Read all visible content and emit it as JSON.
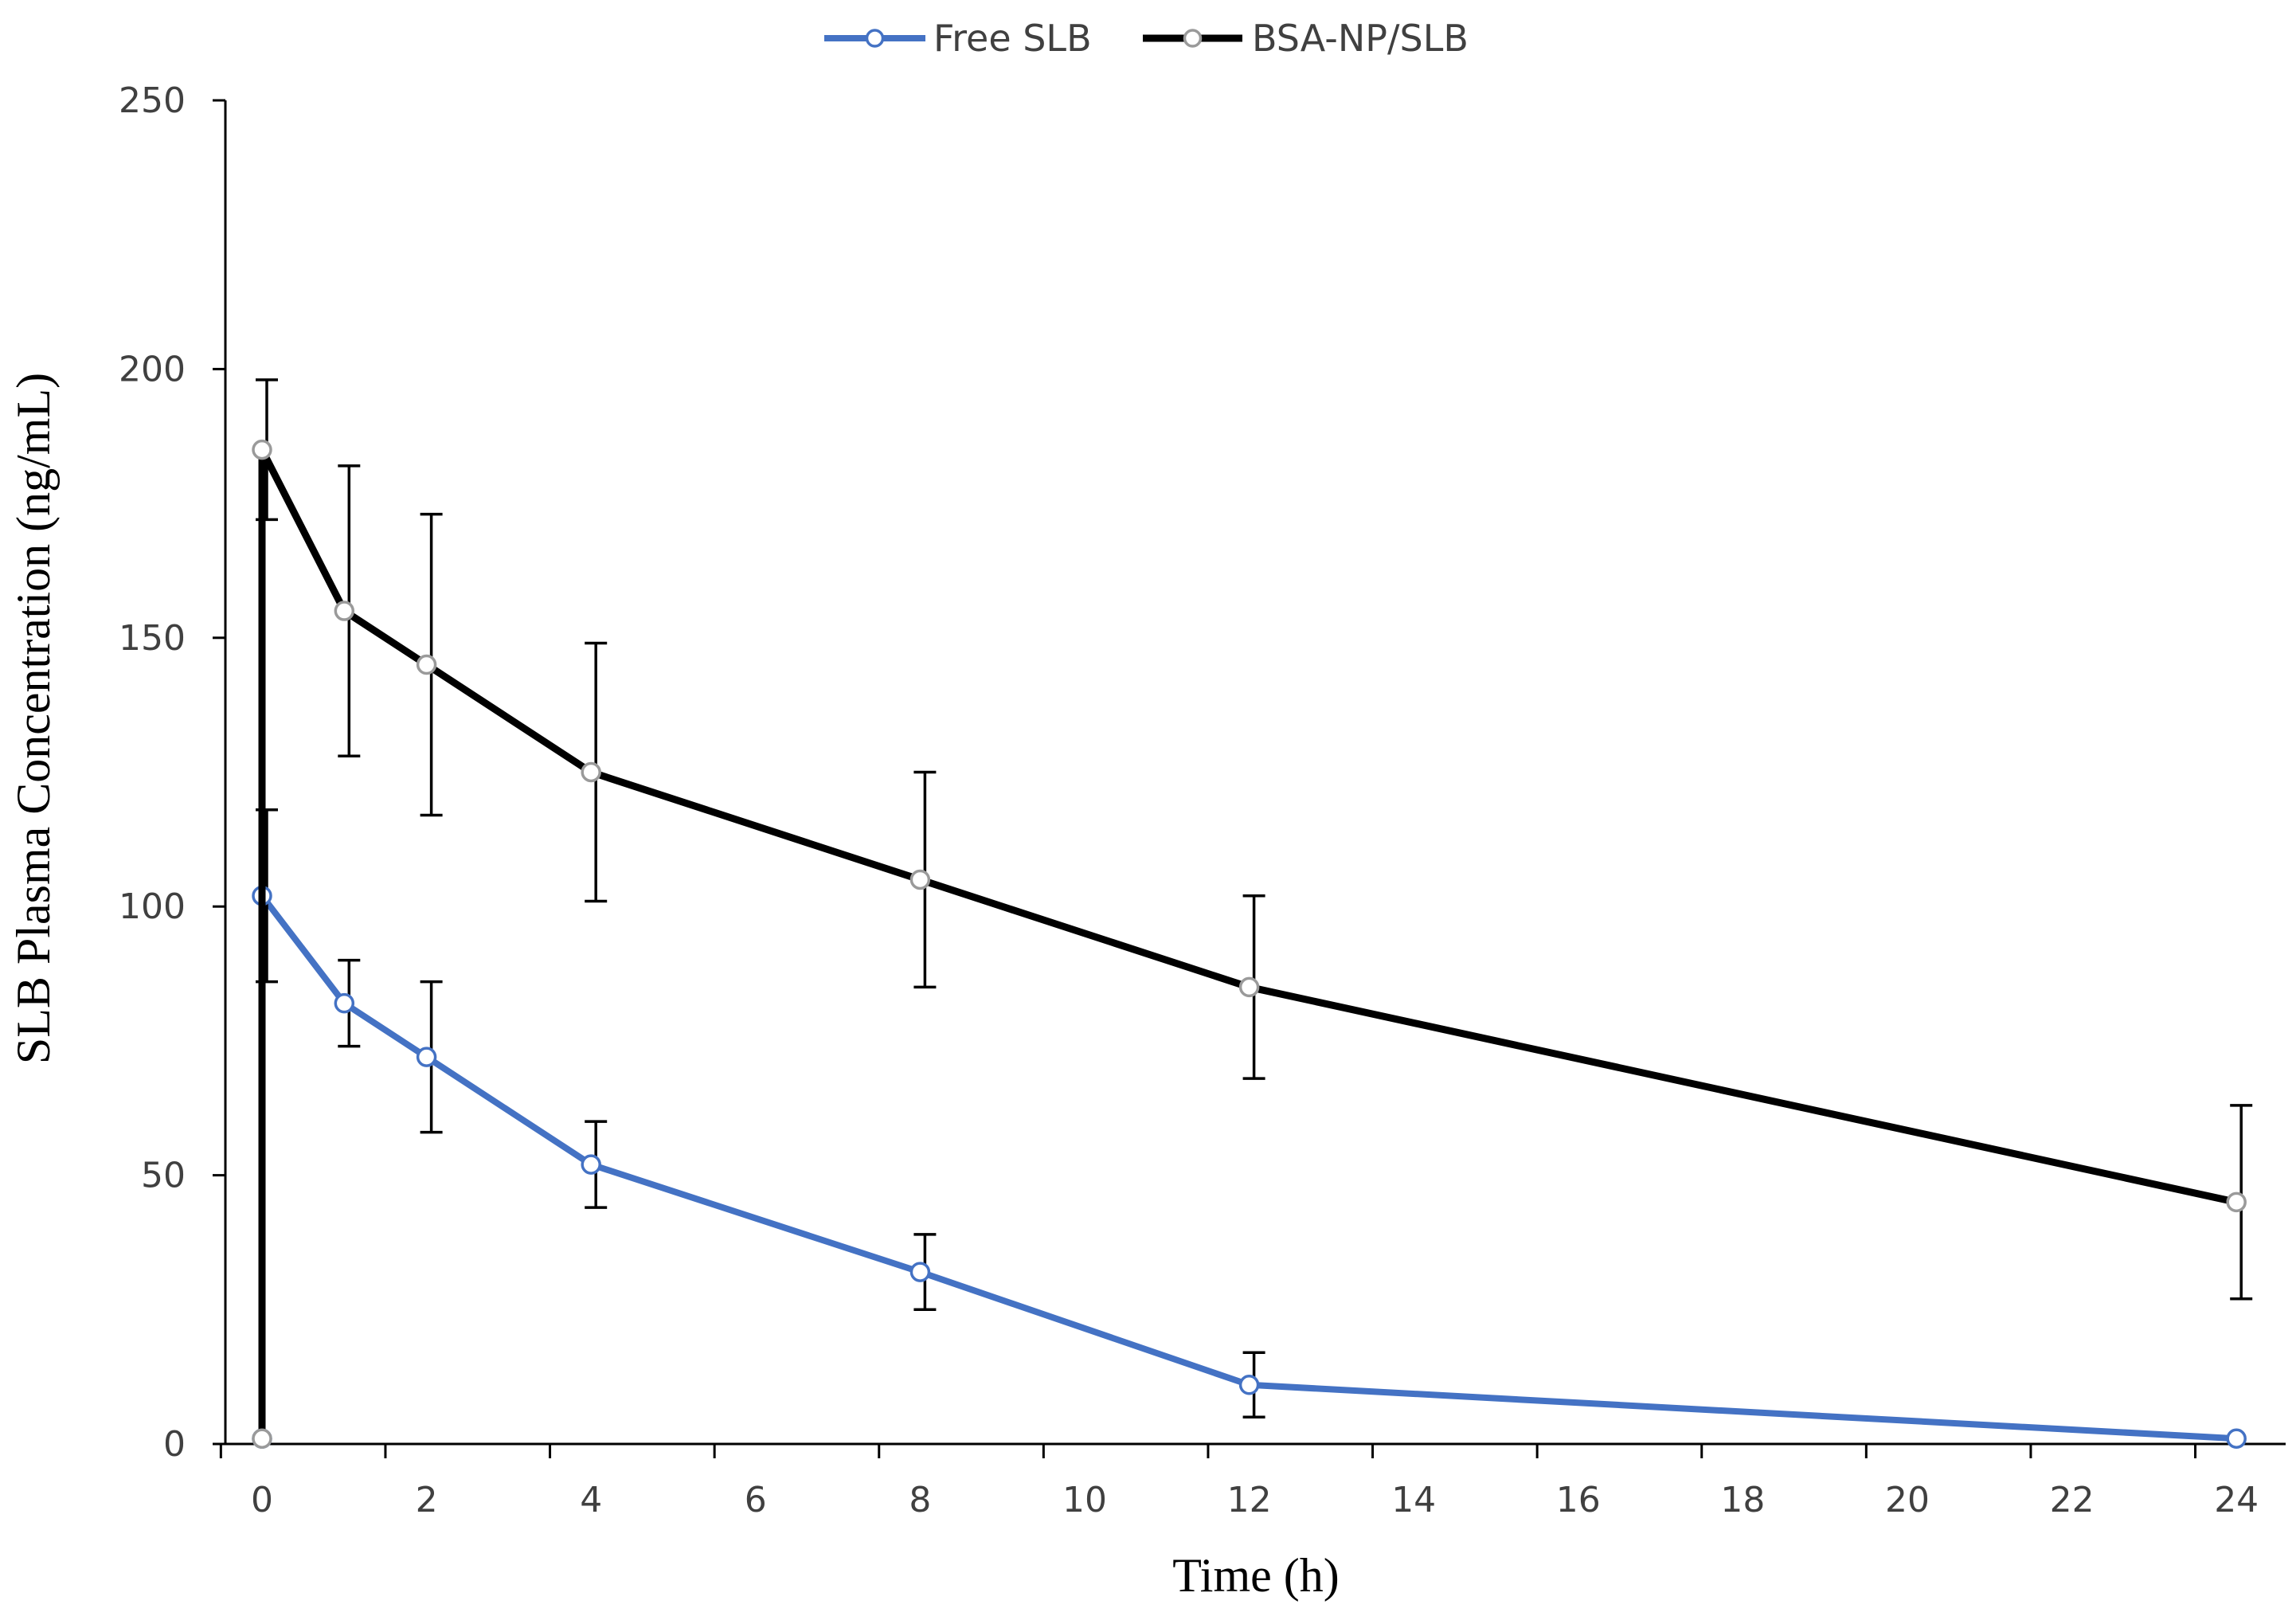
{
  "chart_data": {
    "type": "line",
    "xlabel": "Time (h)",
    "ylabel": "SLB Plasma Concentration (ng/mL)",
    "xlim": [
      0,
      24
    ],
    "ylim": [
      0,
      250
    ],
    "x_ticks": [
      0,
      2,
      4,
      6,
      8,
      10,
      12,
      14,
      16,
      18,
      20,
      22,
      24
    ],
    "y_ticks": [
      0,
      50,
      100,
      150,
      200,
      250
    ],
    "grid": false,
    "legend": "top-center",
    "series": [
      {
        "name": "Free SLB",
        "color": "#4472C4",
        "points": [
          {
            "x": 0,
            "y": 1,
            "err": null
          },
          {
            "x": 0,
            "y": 102,
            "err": 16
          },
          {
            "x": 1,
            "y": 82,
            "err": 8
          },
          {
            "x": 2,
            "y": 72,
            "err": 14
          },
          {
            "x": 4,
            "y": 52,
            "err": 8
          },
          {
            "x": 8,
            "y": 32,
            "err": 7
          },
          {
            "x": 12,
            "y": 11,
            "err": 6
          },
          {
            "x": 24,
            "y": 1,
            "err": null
          }
        ]
      },
      {
        "name": "BSA-NP/SLB",
        "color": "#000000",
        "points": [
          {
            "x": 0,
            "y": 1,
            "err": null
          },
          {
            "x": 0,
            "y": 185,
            "err": 13
          },
          {
            "x": 1,
            "y": 155,
            "err": 27
          },
          {
            "x": 2,
            "y": 145,
            "err": 28
          },
          {
            "x": 4,
            "y": 125,
            "err": 24
          },
          {
            "x": 8,
            "y": 105,
            "err": 20
          },
          {
            "x": 12,
            "y": 85,
            "err": 17
          },
          {
            "x": 24,
            "y": 45,
            "err": 18
          }
        ]
      }
    ]
  }
}
